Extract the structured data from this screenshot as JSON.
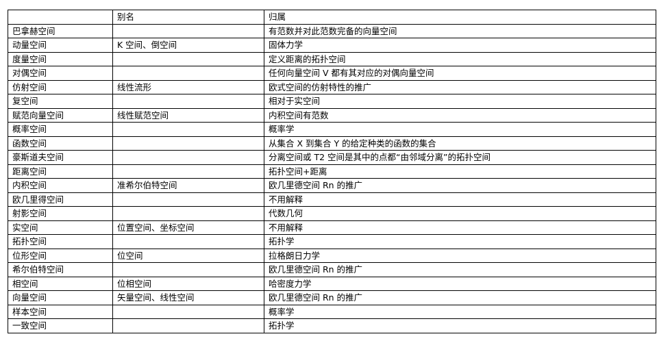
{
  "headers": [
    "",
    "别名",
    "归属"
  ],
  "rows": [
    [
      "巴拿赫空间",
      "",
      "有范数并对此范数完备的向量空间"
    ],
    [
      "动量空间",
      "K 空间、倒空间",
      "固体力学"
    ],
    [
      "度量空间",
      "",
      "定义距离的拓扑空间"
    ],
    [
      "对偶空间",
      "",
      "任何向量空间 V 都有其对应的对偶向量空间"
    ],
    [
      "仿射空间",
      "线性流形",
      "欧式空间的仿射特性的推广"
    ],
    [
      "复空间",
      "",
      "相对于实空间"
    ],
    [
      "赋范向量空间",
      "线性赋范空间",
      "内积空间有范数"
    ],
    [
      "概率空间",
      "",
      "概率学"
    ],
    [
      "函数空间",
      "",
      "从集合 X 到集合 Y 的给定种类的函数的集合"
    ],
    [
      "豪斯道夫空间",
      "",
      "分离空间或 T2 空间是其中的点都“由邻域分离”的拓扑空间"
    ],
    [
      "距离空间",
      "",
      "拓扑空间+距离"
    ],
    [
      "内积空间",
      "准希尔伯特空间",
      "欧几里德空间 Rn 的推广"
    ],
    [
      "欧几里得空间",
      "",
      "不用解释"
    ],
    [
      "射影空间",
      "",
      "代数几何"
    ],
    [
      "实空间",
      "位置空间、坐标空间",
      "不用解释"
    ],
    [
      "拓扑空间",
      "",
      "拓扑学"
    ],
    [
      "位形空间",
      "位空间",
      "拉格朗日力学"
    ],
    [
      "希尔伯特空间",
      "",
      "欧几里德空间 Rn 的推广"
    ],
    [
      "相空间",
      "位相空间",
      "哈密度力学"
    ],
    [
      "向量空间",
      "矢量空间、线性空间",
      "欧几里德空间 Rn 的推广"
    ],
    [
      "样本空间",
      "",
      "概率学"
    ],
    [
      "一致空间",
      "",
      "拓扑学"
    ]
  ]
}
